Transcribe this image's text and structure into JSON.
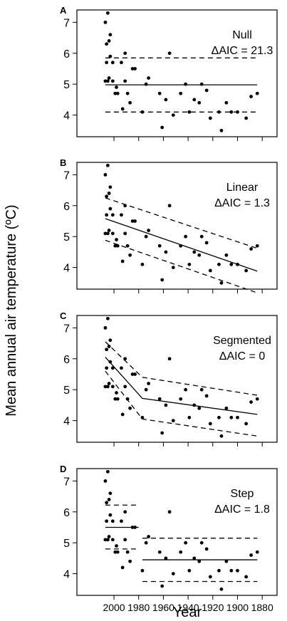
{
  "figure": {
    "ylabel": "Mean annual air temperature (ºC)",
    "xlabel": "Year"
  },
  "chart_data": [
    {
      "type": "scatter",
      "panel": "A",
      "model": "Null",
      "aic": "ΔAIC = 21.3",
      "xlim": [
        2030,
        1868
      ],
      "ylim": [
        3.3,
        7.4
      ],
      "x_ticks": [
        2000,
        1980,
        1960,
        1940,
        1920,
        1900,
        1880
      ],
      "y_ticks": [
        4,
        5,
        6,
        7
      ],
      "points": [
        [
          2007,
          7.0
        ],
        [
          2005,
          7.3
        ],
        [
          2006,
          6.3
        ],
        [
          2004,
          6.4
        ],
        [
          2003,
          6.6
        ],
        [
          2006,
          5.7
        ],
        [
          2007,
          5.1
        ],
        [
          2005,
          5.1
        ],
        [
          2004,
          5.2
        ],
        [
          2003,
          5.9
        ],
        [
          2001,
          5.7
        ],
        [
          2001,
          5.1
        ],
        [
          1999,
          4.7
        ],
        [
          1998,
          4.9
        ],
        [
          1997,
          4.7
        ],
        [
          1994,
          5.7
        ],
        [
          1993,
          4.2
        ],
        [
          1991,
          6.0
        ],
        [
          1991,
          5.1
        ],
        [
          1989,
          4.7
        ],
        [
          1987,
          4.4
        ],
        [
          1985,
          5.5
        ],
        [
          1983,
          5.5
        ],
        [
          1977,
          4.1
        ],
        [
          1974,
          5.0
        ],
        [
          1972,
          5.2
        ],
        [
          1963,
          4.7
        ],
        [
          1961,
          3.6
        ],
        [
          1958,
          4.5
        ],
        [
          1955,
          6.0
        ],
        [
          1952,
          4.0
        ],
        [
          1946,
          4.7
        ],
        [
          1942,
          5.0
        ],
        [
          1939,
          4.1
        ],
        [
          1935,
          4.5
        ],
        [
          1931,
          4.4
        ],
        [
          1929,
          5.0
        ],
        [
          1925,
          4.8
        ],
        [
          1922,
          3.9
        ],
        [
          1915,
          4.1
        ],
        [
          1913,
          3.5
        ],
        [
          1909,
          4.4
        ],
        [
          1905,
          4.1
        ],
        [
          1900,
          4.1
        ],
        [
          1893,
          3.9
        ],
        [
          1889,
          4.6
        ],
        [
          1884,
          4.7
        ]
      ],
      "fit": [
        [
          2007,
          4.98
        ],
        [
          1884,
          4.98
        ]
      ],
      "ci_lower": [
        [
          2007,
          4.1
        ],
        [
          1884,
          4.1
        ]
      ],
      "ci_upper": [
        [
          2007,
          5.85
        ],
        [
          1884,
          5.85
        ]
      ]
    },
    {
      "type": "scatter",
      "panel": "B",
      "model": "Linear",
      "aic": "ΔAIC = 1.3",
      "xlim": [
        2030,
        1868
      ],
      "ylim": [
        3.3,
        7.4
      ],
      "x_ticks": [
        2000,
        1980,
        1960,
        1940,
        1920,
        1900,
        1880
      ],
      "y_ticks": [
        4,
        5,
        6,
        7
      ],
      "points": [
        [
          2007,
          7.0
        ],
        [
          2005,
          7.3
        ],
        [
          2006,
          6.3
        ],
        [
          2004,
          6.4
        ],
        [
          2003,
          6.6
        ],
        [
          2006,
          5.7
        ],
        [
          2007,
          5.1
        ],
        [
          2005,
          5.1
        ],
        [
          2004,
          5.2
        ],
        [
          2003,
          5.9
        ],
        [
          2001,
          5.7
        ],
        [
          2001,
          5.1
        ],
        [
          1999,
          4.7
        ],
        [
          1998,
          4.9
        ],
        [
          1997,
          4.7
        ],
        [
          1994,
          5.7
        ],
        [
          1993,
          4.2
        ],
        [
          1991,
          6.0
        ],
        [
          1991,
          5.1
        ],
        [
          1989,
          4.7
        ],
        [
          1987,
          4.4
        ],
        [
          1985,
          5.5
        ],
        [
          1983,
          5.5
        ],
        [
          1977,
          4.1
        ],
        [
          1974,
          5.0
        ],
        [
          1972,
          5.2
        ],
        [
          1963,
          4.7
        ],
        [
          1961,
          3.6
        ],
        [
          1958,
          4.5
        ],
        [
          1955,
          6.0
        ],
        [
          1952,
          4.0
        ],
        [
          1946,
          4.7
        ],
        [
          1942,
          5.0
        ],
        [
          1939,
          4.1
        ],
        [
          1935,
          4.5
        ],
        [
          1931,
          4.4
        ],
        [
          1929,
          5.0
        ],
        [
          1925,
          4.8
        ],
        [
          1922,
          3.9
        ],
        [
          1915,
          4.1
        ],
        [
          1913,
          3.5
        ],
        [
          1909,
          4.4
        ],
        [
          1905,
          4.1
        ],
        [
          1900,
          4.1
        ],
        [
          1893,
          3.9
        ],
        [
          1889,
          4.6
        ],
        [
          1884,
          4.7
        ]
      ],
      "fit": [
        [
          2007,
          5.58
        ],
        [
          1884,
          3.88
        ]
      ],
      "ci_lower": [
        [
          2007,
          4.88
        ],
        [
          1884,
          3.18
        ]
      ],
      "ci_upper": [
        [
          2007,
          6.25
        ],
        [
          1884,
          4.62
        ]
      ]
    },
    {
      "type": "scatter",
      "panel": "C",
      "model": "Segmented",
      "aic": "ΔAIC = 0",
      "xlim": [
        2030,
        1868
      ],
      "ylim": [
        3.3,
        7.4
      ],
      "x_ticks": [
        2000,
        1980,
        1960,
        1940,
        1920,
        1900,
        1880
      ],
      "y_ticks": [
        4,
        5,
        6,
        7
      ],
      "points": [
        [
          2007,
          7.0
        ],
        [
          2005,
          7.3
        ],
        [
          2006,
          6.3
        ],
        [
          2004,
          6.4
        ],
        [
          2003,
          6.6
        ],
        [
          2006,
          5.7
        ],
        [
          2007,
          5.1
        ],
        [
          2005,
          5.1
        ],
        [
          2004,
          5.2
        ],
        [
          2003,
          5.9
        ],
        [
          2001,
          5.7
        ],
        [
          2001,
          5.1
        ],
        [
          1999,
          4.7
        ],
        [
          1998,
          4.9
        ],
        [
          1997,
          4.7
        ],
        [
          1994,
          5.7
        ],
        [
          1993,
          4.2
        ],
        [
          1991,
          6.0
        ],
        [
          1991,
          5.1
        ],
        [
          1989,
          4.7
        ],
        [
          1987,
          4.4
        ],
        [
          1985,
          5.5
        ],
        [
          1983,
          5.5
        ],
        [
          1977,
          4.1
        ],
        [
          1974,
          5.0
        ],
        [
          1972,
          5.2
        ],
        [
          1963,
          4.7
        ],
        [
          1961,
          3.6
        ],
        [
          1958,
          4.5
        ],
        [
          1955,
          6.0
        ],
        [
          1952,
          4.0
        ],
        [
          1946,
          4.7
        ],
        [
          1942,
          5.0
        ],
        [
          1939,
          4.1
        ],
        [
          1935,
          4.5
        ],
        [
          1931,
          4.4
        ],
        [
          1929,
          5.0
        ],
        [
          1925,
          4.8
        ],
        [
          1922,
          3.9
        ],
        [
          1915,
          4.1
        ],
        [
          1913,
          3.5
        ],
        [
          1909,
          4.4
        ],
        [
          1905,
          4.1
        ],
        [
          1900,
          4.1
        ],
        [
          1893,
          3.9
        ],
        [
          1889,
          4.6
        ],
        [
          1884,
          4.7
        ]
      ],
      "fit": [
        [
          2007,
          6.05
        ],
        [
          1977,
          4.72
        ],
        [
          1884,
          4.2
        ]
      ],
      "ci_lower": [
        [
          2007,
          5.6
        ],
        [
          1977,
          4.05
        ],
        [
          1884,
          3.5
        ]
      ],
      "ci_upper": [
        [
          2007,
          6.55
        ],
        [
          1977,
          5.4
        ],
        [
          1884,
          4.82
        ]
      ]
    },
    {
      "type": "scatter",
      "panel": "D",
      "model": "Step",
      "aic": "ΔAIC = 1.8",
      "xlim": [
        2030,
        1868
      ],
      "ylim": [
        3.3,
        7.4
      ],
      "x_ticks": [
        2000,
        1980,
        1960,
        1940,
        1920,
        1900,
        1880
      ],
      "y_ticks": [
        4,
        5,
        6,
        7
      ],
      "points": [
        [
          2007,
          7.0
        ],
        [
          2005,
          7.3
        ],
        [
          2006,
          6.3
        ],
        [
          2004,
          6.4
        ],
        [
          2003,
          6.6
        ],
        [
          2006,
          5.7
        ],
        [
          2007,
          5.1
        ],
        [
          2005,
          5.1
        ],
        [
          2004,
          5.2
        ],
        [
          2003,
          5.9
        ],
        [
          2001,
          5.7
        ],
        [
          2001,
          5.1
        ],
        [
          1999,
          4.7
        ],
        [
          1998,
          4.9
        ],
        [
          1997,
          4.7
        ],
        [
          1994,
          5.7
        ],
        [
          1993,
          4.2
        ],
        [
          1991,
          6.0
        ],
        [
          1991,
          5.1
        ],
        [
          1989,
          4.7
        ],
        [
          1987,
          4.4
        ],
        [
          1985,
          5.5
        ],
        [
          1983,
          5.5
        ],
        [
          1977,
          4.1
        ],
        [
          1974,
          5.0
        ],
        [
          1972,
          5.2
        ],
        [
          1963,
          4.7
        ],
        [
          1961,
          3.6
        ],
        [
          1958,
          4.5
        ],
        [
          1955,
          6.0
        ],
        [
          1952,
          4.0
        ],
        [
          1946,
          4.7
        ],
        [
          1942,
          5.0
        ],
        [
          1939,
          4.1
        ],
        [
          1935,
          4.5
        ],
        [
          1931,
          4.4
        ],
        [
          1929,
          5.0
        ],
        [
          1925,
          4.8
        ],
        [
          1922,
          3.9
        ],
        [
          1915,
          4.1
        ],
        [
          1913,
          3.5
        ],
        [
          1909,
          4.4
        ],
        [
          1905,
          4.1
        ],
        [
          1900,
          4.1
        ],
        [
          1893,
          3.9
        ],
        [
          1889,
          4.6
        ],
        [
          1884,
          4.7
        ]
      ],
      "steps": [
        {
          "x_start": 2007,
          "x_end": 1980,
          "fit": 5.5,
          "ci_lower": 4.8,
          "ci_upper": 6.22
        },
        {
          "x_start": 1977,
          "x_end": 1884,
          "fit": 4.45,
          "ci_lower": 3.75,
          "ci_upper": 5.15
        }
      ]
    }
  ]
}
